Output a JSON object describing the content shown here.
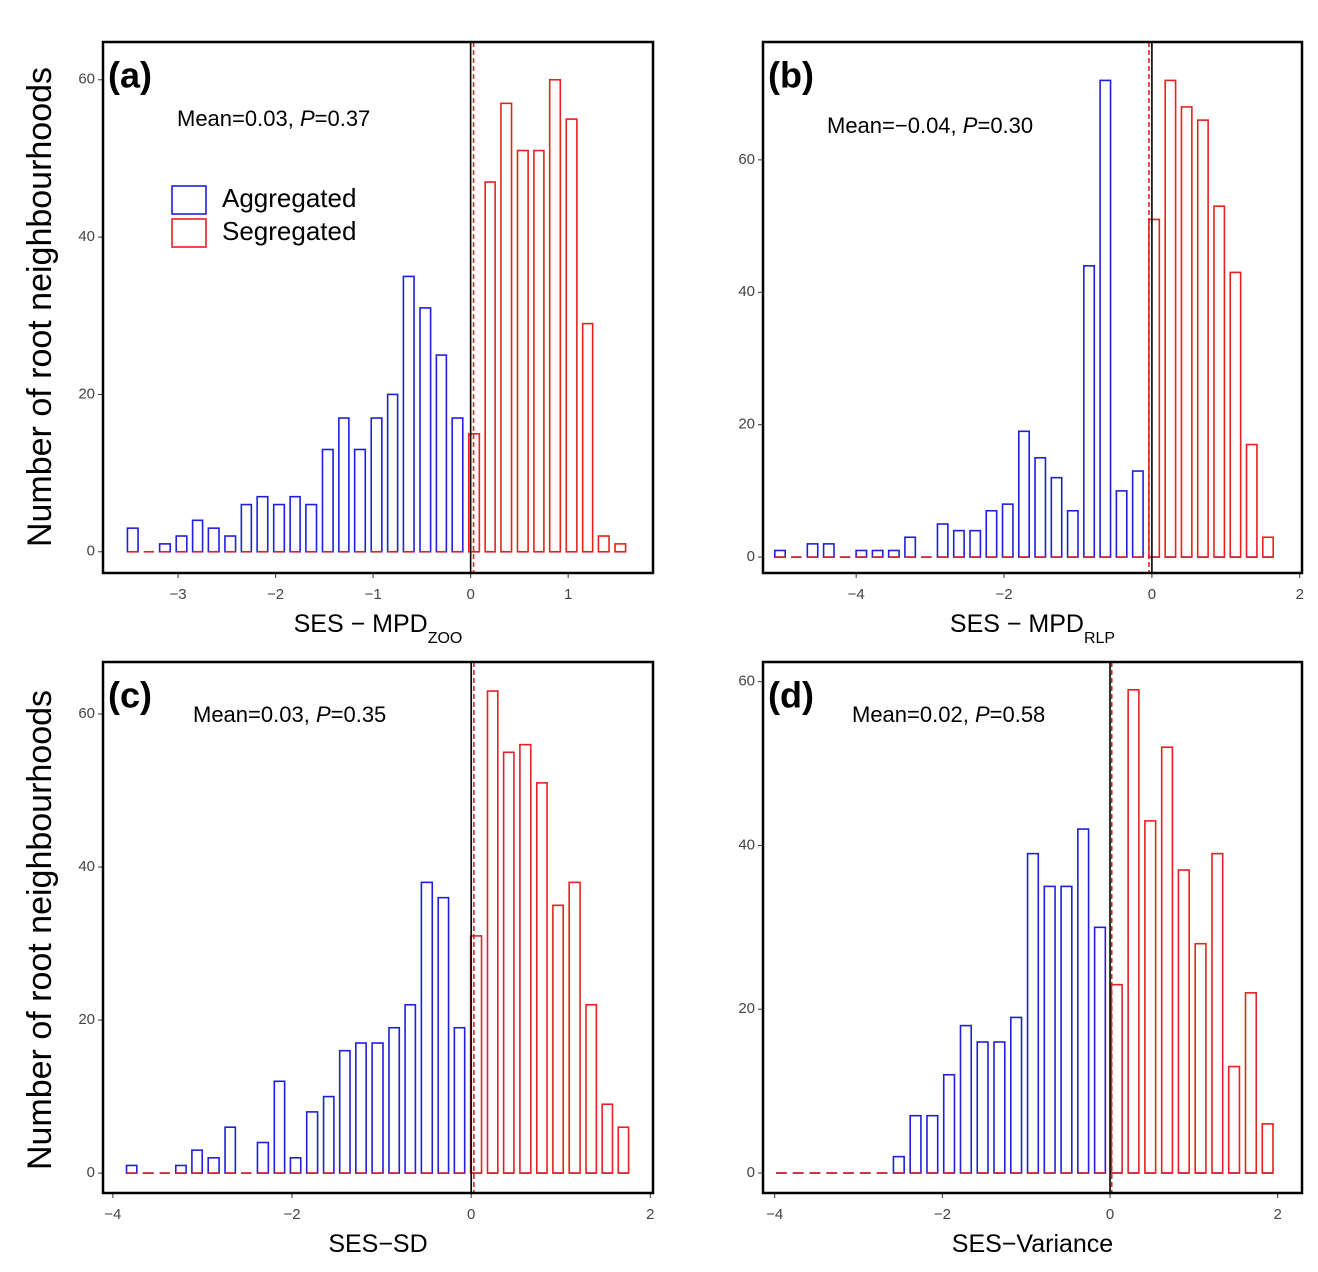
{
  "ylabel": "Number of root neighbourhoods",
  "chart_data": [
    {
      "type": "histogram",
      "panel_label": "(a)",
      "annotation": [
        "Mean=0.03, ",
        "P",
        "=0.37"
      ],
      "xlabel": "SES − MPD",
      "xlabel_sub": "ZOO",
      "legend": "top-left",
      "xlim": [
        -3.77,
        1.87
      ],
      "ylim": [
        -2.7,
        64.8
      ],
      "xticks": [
        {
          "value": -3,
          "label": "−3"
        },
        {
          "value": -2,
          "label": "−2"
        },
        {
          "value": -1,
          "label": "−1"
        },
        0,
        1
      ],
      "yticks": [
        0,
        20,
        40,
        60
      ],
      "reference_line": 0,
      "mean_line": 0.03,
      "bins": [
        -3.55,
        -3.38,
        -3.22,
        -3.05,
        -2.88,
        -2.72,
        -2.55,
        -2.38,
        -2.22,
        -2.05,
        -1.88,
        -1.72,
        -1.55,
        -1.38,
        -1.22,
        -1.05,
        -0.88,
        -0.72,
        -0.55,
        -0.38,
        -0.22,
        -0.05,
        0.12,
        0.28,
        0.45,
        0.62,
        0.78,
        0.95,
        1.12,
        1.28,
        1.45,
        1.62
      ],
      "series": [
        {
          "name": "Aggregated",
          "color": "#1f1fe0",
          "values": [
            3,
            0,
            1,
            2,
            4,
            3,
            2,
            6,
            7,
            6,
            7,
            6,
            13,
            17,
            13,
            17,
            20,
            35,
            31,
            25,
            17,
            0,
            0,
            0,
            0,
            0,
            0,
            0,
            0,
            0,
            0
          ]
        },
        {
          "name": "Segregated",
          "color": "#e82020",
          "values": [
            0,
            0,
            0,
            0,
            0,
            0,
            0,
            0,
            0,
            0,
            0,
            0,
            0,
            0,
            0,
            0,
            0,
            0,
            0,
            0,
            0,
            15,
            47,
            57,
            51,
            51,
            60,
            55,
            29,
            2,
            1
          ]
        }
      ]
    },
    {
      "type": "histogram",
      "panel_label": "(b)",
      "annotation": [
        "Mean=−0.04, ",
        "P",
        "=0.30"
      ],
      "xlabel": "SES − MPD",
      "xlabel_sub": "RLP",
      "xlim": [
        -5.26,
        2.03
      ],
      "ylim": [
        -2.4,
        77.8
      ],
      "xticks": [
        {
          "value": -4,
          "label": "−4"
        },
        {
          "value": -2,
          "label": "−2"
        },
        0,
        2
      ],
      "yticks": [
        0,
        20,
        40,
        60
      ],
      "reference_line": 0,
      "mean_line": -0.04,
      "bins": [
        -5.14,
        -4.92,
        -4.7,
        -4.48,
        -4.26,
        -4.04,
        -3.82,
        -3.6,
        -3.38,
        -3.16,
        -2.94,
        -2.72,
        -2.5,
        -2.28,
        -2.06,
        -1.84,
        -1.62,
        -1.4,
        -1.18,
        -0.96,
        -0.74,
        -0.52,
        -0.3,
        -0.08,
        0.14,
        0.36,
        0.58,
        0.8,
        1.02,
        1.24,
        1.46,
        1.68
      ],
      "series": [
        {
          "color": "#1f1fe0",
          "values": [
            1,
            0,
            2,
            2,
            0,
            1,
            1,
            1,
            3,
            0,
            5,
            4,
            4,
            7,
            8,
            19,
            15,
            12,
            7,
            44,
            72,
            10,
            13,
            0,
            0,
            0,
            0,
            0,
            0,
            0,
            0
          ]
        },
        {
          "color": "#e82020",
          "values": [
            0,
            0,
            0,
            0,
            0,
            0,
            0,
            0,
            0,
            0,
            0,
            0,
            0,
            0,
            0,
            0,
            0,
            0,
            0,
            0,
            0,
            0,
            0,
            51,
            72,
            68,
            66,
            53,
            43,
            17,
            3
          ]
        }
      ]
    },
    {
      "type": "histogram",
      "panel_label": "(c)",
      "annotation": [
        "Mean=0.03, ",
        "P",
        "=0.35"
      ],
      "xlabel": "SES−SD",
      "xlim": [
        -4.11,
        2.03
      ],
      "ylim": [
        -2.6,
        66.8
      ],
      "xticks": [
        {
          "value": -4,
          "label": "−4"
        },
        {
          "value": -2,
          "label": "−2"
        },
        0,
        2
      ],
      "yticks": [
        0,
        20,
        40,
        60
      ],
      "reference_line": 0,
      "mean_line": 0.03,
      "bins": [
        -3.88,
        -3.7,
        -3.51,
        -3.33,
        -3.15,
        -2.97,
        -2.78,
        -2.6,
        -2.42,
        -2.23,
        -2.05,
        -1.87,
        -1.68,
        -1.5,
        -1.32,
        -1.14,
        -0.95,
        -0.77,
        -0.59,
        -0.4,
        -0.22,
        -0.04,
        0.15,
        0.33,
        0.51,
        0.7,
        0.88,
        1.06,
        1.25,
        1.43,
        1.61,
        1.79
      ],
      "series": [
        {
          "color": "#1f1fe0",
          "values": [
            1,
            0,
            0,
            1,
            3,
            2,
            6,
            0,
            4,
            12,
            2,
            8,
            10,
            16,
            17,
            17,
            19,
            22,
            38,
            36,
            19,
            0,
            0,
            0,
            0,
            0,
            0,
            0,
            0,
            0,
            0
          ]
        },
        {
          "color": "#e82020",
          "values": [
            0,
            0,
            0,
            0,
            0,
            0,
            0,
            0,
            0,
            0,
            0,
            0,
            0,
            0,
            0,
            0,
            0,
            0,
            0,
            0,
            0,
            31,
            63,
            55,
            56,
            51,
            35,
            38,
            22,
            9,
            6
          ]
        }
      ]
    },
    {
      "type": "histogram",
      "panel_label": "(d)",
      "annotation": [
        "Mean=0.02, ",
        "P",
        "=0.58"
      ],
      "xlabel": "SES−Variance",
      "xlim": [
        -4.14,
        2.29
      ],
      "ylim": [
        -2.44,
        62.4
      ],
      "xticks": [
        {
          "value": -4,
          "label": "−4"
        },
        {
          "value": -2,
          "label": "−2"
        },
        0,
        2
      ],
      "yticks": [
        0,
        20,
        40,
        60
      ],
      "reference_line": 0,
      "mean_line": 0.02,
      "bins": [
        -4.02,
        -3.82,
        -3.62,
        -3.42,
        -3.22,
        -3.02,
        -2.82,
        -2.62,
        -2.42,
        -2.22,
        -2.02,
        -1.82,
        -1.62,
        -1.42,
        -1.22,
        -1.02,
        -0.82,
        -0.62,
        -0.42,
        -0.22,
        -0.02,
        0.18,
        0.38,
        0.58,
        0.78,
        0.98,
        1.18,
        1.38,
        1.58,
        1.78,
        1.98
      ],
      "series": [
        {
          "color": "#1f1fe0",
          "values": [
            0,
            0,
            0,
            0,
            0,
            0,
            0,
            2,
            7,
            7,
            12,
            18,
            16,
            16,
            19,
            39,
            35,
            35,
            42,
            30,
            0,
            0,
            0,
            0,
            0,
            0,
            0,
            0,
            0,
            0
          ]
        },
        {
          "color": "#e82020",
          "values": [
            0,
            0,
            0,
            0,
            0,
            0,
            0,
            0,
            0,
            0,
            0,
            0,
            0,
            0,
            0,
            0,
            0,
            0,
            0,
            0,
            23,
            59,
            43,
            52,
            37,
            28,
            39,
            13,
            22,
            6
          ]
        }
      ]
    }
  ]
}
